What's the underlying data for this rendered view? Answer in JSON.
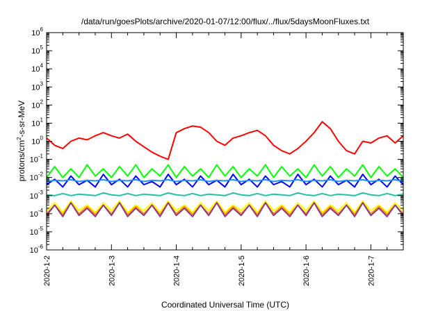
{
  "chart_data": {
    "type": "line",
    "title": "/data/run/goesPlots/archive/2020-01-07/12:00/flux/../flux/5daysMoonFluxes.txt",
    "xlabel": "Coordinated Universal Time (UTC)",
    "ylabel_prefix": "protons/cm",
    "ylabel_exp": "2",
    "ylabel_suffix": "-s-sr-MeV",
    "yscale": "log",
    "ylim": [
      1e-06,
      1000000
    ],
    "xlim": [
      "2020-01-02T00:00",
      "2020-01-07T12:00"
    ],
    "grid": false,
    "legend": "none",
    "x_ticks": [
      "2020-1-2",
      "2020-1-3",
      "2020-1-4",
      "2020-1-5",
      "2020-1-6",
      "2020-1-7"
    ],
    "x_tick_values": [
      "2020-01-02T00:00",
      "2020-01-03T00:00",
      "2020-01-04T00:00",
      "2020-01-05T00:00",
      "2020-01-06T00:00",
      "2020-01-07T00:00"
    ],
    "y_ticks": [
      {
        "base": "10",
        "exp": "-6",
        "value": 1e-06
      },
      {
        "base": "10",
        "exp": "-5",
        "value": 1e-05
      },
      {
        "base": "10",
        "exp": "-4",
        "value": 0.0001
      },
      {
        "base": "10",
        "exp": "-3",
        "value": 0.001
      },
      {
        "base": "10",
        "exp": "-2",
        "value": 0.01
      },
      {
        "base": "10",
        "exp": "-1",
        "value": 0.1
      },
      {
        "base": "10",
        "exp": "0",
        "value": 1
      },
      {
        "base": "10",
        "exp": "1",
        "value": 10
      },
      {
        "base": "10",
        "exp": "2",
        "value": 100
      },
      {
        "base": "10",
        "exp": "3",
        "value": 1000
      },
      {
        "base": "10",
        "exp": "4",
        "value": 10000
      },
      {
        "base": "10",
        "exp": "5",
        "value": 100000
      },
      {
        "base": "10",
        "exp": "6",
        "value": 1000000
      }
    ],
    "x": [
      "2020-01-02T00:00",
      "2020-01-02T03:00",
      "2020-01-02T06:00",
      "2020-01-02T09:00",
      "2020-01-02T12:00",
      "2020-01-02T15:00",
      "2020-01-02T18:00",
      "2020-01-02T21:00",
      "2020-01-03T00:00",
      "2020-01-03T03:00",
      "2020-01-03T06:00",
      "2020-01-03T09:00",
      "2020-01-03T12:00",
      "2020-01-03T15:00",
      "2020-01-03T18:00",
      "2020-01-03T21:00",
      "2020-01-04T00:00",
      "2020-01-04T03:00",
      "2020-01-04T06:00",
      "2020-01-04T09:00",
      "2020-01-04T12:00",
      "2020-01-04T15:00",
      "2020-01-04T18:00",
      "2020-01-04T21:00",
      "2020-01-05T00:00",
      "2020-01-05T03:00",
      "2020-01-05T06:00",
      "2020-01-05T09:00",
      "2020-01-05T12:00",
      "2020-01-05T15:00",
      "2020-01-05T18:00",
      "2020-01-05T21:00",
      "2020-01-06T00:00",
      "2020-01-06T03:00",
      "2020-01-06T06:00",
      "2020-01-06T09:00",
      "2020-01-06T12:00",
      "2020-01-06T15:00",
      "2020-01-06T18:00",
      "2020-01-06T21:00",
      "2020-01-07T00:00",
      "2020-01-07T03:00",
      "2020-01-07T06:00",
      "2020-01-07T09:00",
      "2020-01-07T12:00"
    ],
    "series": [
      {
        "color": "#ff0000",
        "values": [
          1.5,
          0.6,
          0.4,
          1.0,
          1.5,
          1.2,
          2.0,
          3.0,
          2.0,
          1.5,
          2.5,
          1.0,
          0.5,
          0.25,
          0.15,
          0.1,
          3.0,
          5.0,
          7.0,
          6.0,
          3.0,
          1.0,
          0.6,
          1.5,
          2.0,
          3.0,
          4.0,
          2.0,
          0.6,
          0.3,
          0.2,
          0.4,
          1.0,
          3.0,
          12.0,
          5.0,
          1.0,
          0.3,
          0.2,
          1.0,
          0.8,
          1.5,
          2.0,
          0.8,
          2.0
        ]
      },
      {
        "color": "#00ff00",
        "values": [
          0.01,
          0.04,
          0.01,
          0.03,
          0.01,
          0.05,
          0.012,
          0.03,
          0.01,
          0.04,
          0.012,
          0.05,
          0.01,
          0.03,
          0.012,
          0.05,
          0.01,
          0.04,
          0.012,
          0.03,
          0.01,
          0.05,
          0.012,
          0.04,
          0.01,
          0.03,
          0.012,
          0.05,
          0.01,
          0.04,
          0.012,
          0.03,
          0.01,
          0.05,
          0.012,
          0.04,
          0.01,
          0.03,
          0.012,
          0.05,
          0.01,
          0.04,
          0.012,
          0.03,
          0.01
        ]
      },
      {
        "color": "#0000ff",
        "values": [
          0.004,
          0.008,
          0.003,
          0.012,
          0.004,
          0.007,
          0.003,
          0.015,
          0.004,
          0.008,
          0.003,
          0.012,
          0.004,
          0.006,
          0.003,
          0.015,
          0.004,
          0.008,
          0.003,
          0.012,
          0.004,
          0.007,
          0.003,
          0.015,
          0.004,
          0.008,
          0.003,
          0.012,
          0.004,
          0.006,
          0.003,
          0.015,
          0.004,
          0.008,
          0.003,
          0.012,
          0.004,
          0.007,
          0.003,
          0.015,
          0.004,
          0.008,
          0.003,
          0.012,
          0.004
        ]
      },
      {
        "color": "#1e90ff",
        "values": [
          0.006,
          0.007,
          0.0065,
          0.0075,
          0.006,
          0.007,
          0.0065,
          0.0075,
          0.006,
          0.007,
          0.0065,
          0.0075,
          0.006,
          0.007,
          0.0065,
          0.0075,
          0.006,
          0.007,
          0.0065,
          0.0075,
          0.006,
          0.007,
          0.0065,
          0.0075,
          0.006,
          0.007,
          0.0065,
          0.0075,
          0.006,
          0.007,
          0.0065,
          0.0075,
          0.006,
          0.007,
          0.0065,
          0.0075,
          0.006,
          0.007,
          0.0065,
          0.0075,
          0.006,
          0.007,
          0.0065,
          0.0075,
          0.006
        ]
      },
      {
        "color": "#20c0a0",
        "values": [
          0.0011,
          0.001,
          0.0013,
          0.001,
          0.0012,
          0.0011,
          0.001,
          0.0014,
          0.0011,
          0.001,
          0.0013,
          0.001,
          0.0012,
          0.0011,
          0.001,
          0.0014,
          0.0011,
          0.001,
          0.0013,
          0.001,
          0.0012,
          0.0011,
          0.001,
          0.0014,
          0.0011,
          0.001,
          0.0013,
          0.001,
          0.0012,
          0.0011,
          0.001,
          0.0014,
          0.0011,
          0.001,
          0.0013,
          0.001,
          0.0012,
          0.0011,
          0.001,
          0.0014,
          0.0011,
          0.001,
          0.0013,
          0.001,
          0.0012
        ]
      },
      {
        "color": "#ffff00",
        "values": [
          0.00015,
          0.0004,
          0.00012,
          0.0005,
          0.00015,
          0.0003,
          0.00012,
          0.0004,
          0.00015,
          0.0005,
          0.00012,
          0.0003,
          0.00015,
          0.0004,
          0.00012,
          0.0005,
          0.00015,
          0.0003,
          0.00012,
          0.0004,
          0.00015,
          0.0005,
          0.00012,
          0.0003,
          0.00015,
          0.0004,
          0.00012,
          0.0005,
          0.00015,
          0.0003,
          0.00012,
          0.0004,
          0.00015,
          0.0005,
          0.00012,
          0.0003,
          0.00015,
          0.0004,
          0.00012,
          0.0005,
          0.00015,
          0.0003,
          0.00012,
          0.0004,
          0.00015
        ]
      },
      {
        "color": "#ff8c00",
        "values": [
          0.0001,
          0.0003,
          9e-05,
          0.0004,
          0.0001,
          0.00025,
          9e-05,
          0.0003,
          0.0001,
          0.0004,
          9e-05,
          0.00025,
          0.0001,
          0.0003,
          9e-05,
          0.0004,
          0.0001,
          0.00025,
          9e-05,
          0.0003,
          0.0001,
          0.0004,
          9e-05,
          0.00025,
          0.0001,
          0.0003,
          9e-05,
          0.0004,
          0.0001,
          0.00025,
          9e-05,
          0.0003,
          0.0001,
          0.0004,
          9e-05,
          0.00025,
          0.0001,
          0.0003,
          9e-05,
          0.0004,
          0.0001,
          0.00025,
          9e-05,
          0.0003,
          0.0001
        ]
      },
      {
        "color": "#8b3a8b",
        "values": [
          8e-05,
          0.0003,
          7e-05,
          0.0004,
          8e-05,
          0.0002,
          7e-05,
          0.0003,
          8e-05,
          0.0004,
          7e-05,
          0.0002,
          8e-05,
          0.0003,
          7e-05,
          0.0004,
          8e-05,
          0.0002,
          7e-05,
          0.0003,
          8e-05,
          0.0004,
          7e-05,
          0.0002,
          8e-05,
          0.0003,
          7e-05,
          0.0004,
          8e-05,
          0.0002,
          7e-05,
          0.0003,
          8e-05,
          0.0004,
          7e-05,
          0.0002,
          8e-05,
          0.0003,
          7e-05,
          0.0004,
          8e-05,
          0.0002,
          7e-05,
          0.0003,
          8e-05
        ]
      }
    ]
  }
}
